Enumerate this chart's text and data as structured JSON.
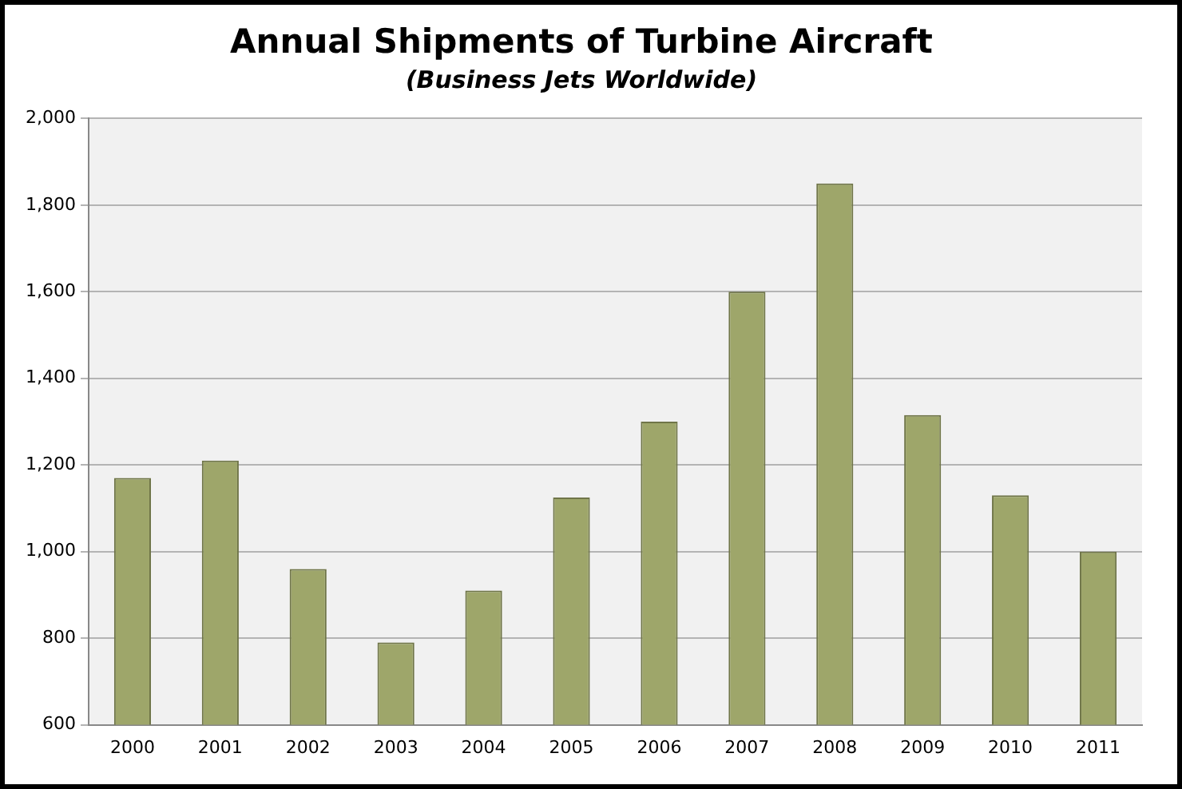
{
  "chart_data": {
    "type": "bar",
    "title": "Annual Shipments of Turbine Aircraft",
    "subtitle": "(Business Jets Worldwide)",
    "categories": [
      "2000",
      "2001",
      "2002",
      "2003",
      "2004",
      "2005",
      "2006",
      "2007",
      "2008",
      "2009",
      "2010",
      "2011"
    ],
    "values": [
      1170,
      1210,
      960,
      790,
      910,
      1125,
      1300,
      1600,
      1850,
      1315,
      1130,
      1000
    ],
    "color": "#9ea66a",
    "ylim": [
      600,
      2000
    ],
    "yticks": [
      {
        "value": 600,
        "label": "600"
      },
      {
        "value": 800,
        "label": "800"
      },
      {
        "value": 1000,
        "label": "1,000"
      },
      {
        "value": 1200,
        "label": "1,200"
      },
      {
        "value": 1400,
        "label": "1,400"
      },
      {
        "value": 1600,
        "label": "1,600"
      },
      {
        "value": 1800,
        "label": "1,800"
      },
      {
        "value": 2000,
        "label": "2,000"
      }
    ],
    "grid": "y"
  }
}
